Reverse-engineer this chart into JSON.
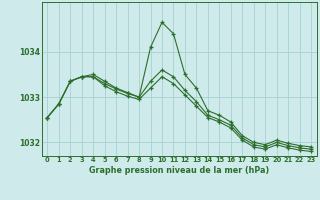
{
  "title": "Graphe pression niveau de la mer (hPa)",
  "bg_color": "#ceeaea",
  "grid_color": "#aad4d4",
  "line_color": "#2d6e2d",
  "marker_color": "#2d6e2d",
  "ylim": [
    1031.7,
    1035.1
  ],
  "xlim": [
    -0.5,
    23.5
  ],
  "yticks": [
    1032,
    1033,
    1034
  ],
  "xticks": [
    0,
    1,
    2,
    3,
    4,
    5,
    6,
    7,
    8,
    9,
    10,
    11,
    12,
    13,
    14,
    15,
    16,
    17,
    18,
    19,
    20,
    21,
    22,
    23
  ],
  "series": [
    [
      1032.55,
      1032.85,
      1033.35,
      1033.45,
      1033.5,
      1033.35,
      1033.2,
      1033.1,
      1033.0,
      1034.1,
      1034.65,
      1034.4,
      1033.5,
      1033.2,
      1032.7,
      1032.6,
      1032.45,
      1032.15,
      1032.0,
      1031.95,
      1032.05,
      1031.98,
      1031.93,
      1031.9
    ],
    [
      1032.55,
      1032.85,
      1033.35,
      1033.45,
      1033.45,
      1033.3,
      1033.18,
      1033.08,
      1033.0,
      1033.35,
      1033.6,
      1033.45,
      1033.15,
      1032.9,
      1032.6,
      1032.5,
      1032.38,
      1032.1,
      1031.95,
      1031.9,
      1032.0,
      1031.93,
      1031.88,
      1031.85
    ],
    [
      1032.55,
      1032.85,
      1033.35,
      1033.45,
      1033.45,
      1033.25,
      1033.12,
      1033.02,
      1032.95,
      1033.2,
      1033.45,
      1033.3,
      1033.05,
      1032.8,
      1032.55,
      1032.45,
      1032.32,
      1032.05,
      1031.9,
      1031.85,
      1031.95,
      1031.88,
      1031.83,
      1031.8
    ]
  ]
}
